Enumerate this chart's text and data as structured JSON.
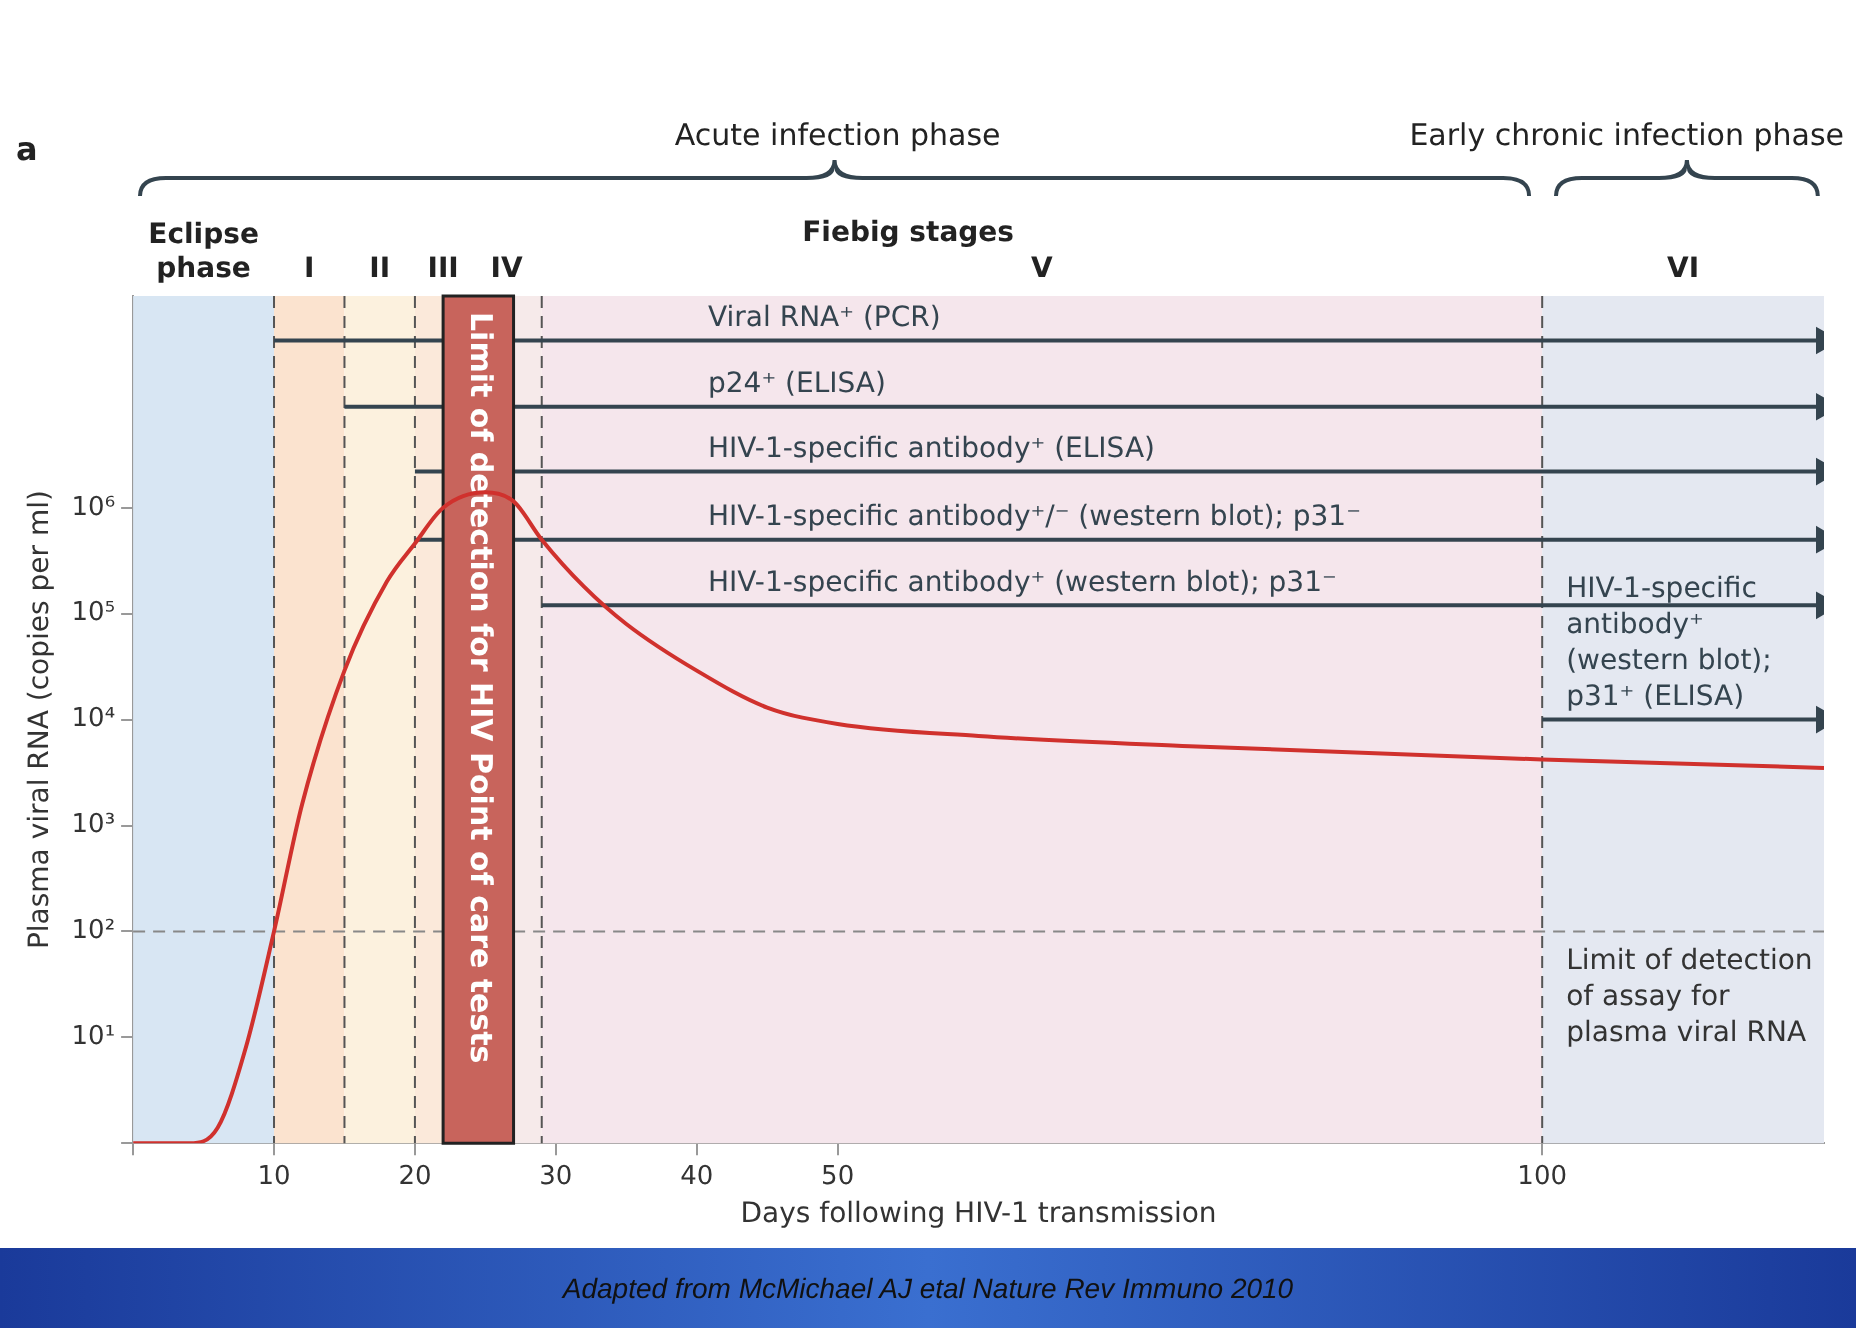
{
  "chart_data": {
    "type": "line",
    "xlabel": "Days following HIV-1 transmission",
    "ylabel": "Plasma viral RNA (copies per ml)",
    "series": [
      {
        "color": "#d0312d",
        "x": [
          0,
          4,
          6,
          8,
          10,
          12,
          15,
          18,
          20,
          22,
          25,
          27,
          29,
          32,
          35,
          40,
          45,
          50,
          60,
          75,
          100,
          120
        ],
        "values": [
          1,
          1,
          1.4,
          8,
          100,
          1600,
          29000,
          200000,
          460000,
          1000000,
          1400000,
          1150000,
          500000,
          180000,
          80000,
          29000,
          13000,
          9100,
          7000,
          5600,
          4200,
          3500
        ]
      },
      {
        "name": "Viral RNA⁺ (PCR)",
        "color": "#34444f",
        "marker": "triangle",
        "x": [
          10,
          120
        ],
        "values": [
          38000000,
          38000000
        ]
      },
      {
        "name": "p24⁺ (ELISA)",
        "color": "#34444f",
        "marker": "triangle",
        "x": [
          15,
          120
        ],
        "values": [
          9000000,
          9000000
        ]
      },
      {
        "name": "HIV-1-specific antibody⁺ (ELISA)",
        "color": "#34444f",
        "marker": "triangle",
        "x": [
          20,
          120
        ],
        "values": [
          2200000,
          2200000
        ]
      },
      {
        "name": "HIV-1-specific antibody⁺/⁻ (western blot); p31⁻",
        "color": "#34444f",
        "marker": "triangle",
        "x": [
          20,
          120
        ],
        "values": [
          500000,
          500000
        ]
      },
      {
        "name": "HIV-1-specific antibody⁺ (western blot); p31⁻",
        "color": "#34444f",
        "marker": "triangle",
        "x": [
          29,
          120
        ],
        "values": [
          120000,
          120000
        ]
      },
      {
        "name": "HIV-1-specific antibody⁺ (western blot); p31⁺ (ELISA)",
        "color": "#34444f",
        "marker": "triangle",
        "x": [
          100,
          120
        ],
        "values": [
          10000,
          10000
        ]
      }
    ],
    "xlim": [
      0,
      120
    ],
    "xticks": [
      {
        "value": 0,
        "label": null
      },
      10,
      20,
      30,
      40,
      50,
      100
    ],
    "ylim": [
      1,
      100000000
    ],
    "yticks": [
      {
        "value": 1,
        "label": null
      },
      {
        "value": 10,
        "label": "10¹"
      },
      {
        "value": 100,
        "label": "10²"
      },
      {
        "value": 1000,
        "label": "10³"
      },
      {
        "value": 10000,
        "label": "10⁴"
      },
      {
        "value": 100000,
        "label": "10⁵"
      },
      {
        "value": 1000000,
        "label": "10⁶"
      }
    ],
    "log": "y",
    "grid": false,
    "legend": false,
    "marker": "none",
    "line_style": "solid",
    "bands": [
      {
        "axis": "x",
        "from": 0,
        "to": 10,
        "label": "Eclipse phase",
        "color": "#d8e6f3"
      },
      {
        "axis": "x",
        "from": 10,
        "to": 15,
        "label": "I",
        "color": "#fbe3cf"
      },
      {
        "axis": "x",
        "from": 15,
        "to": 20,
        "label": "II",
        "color": "#fcf1de"
      },
      {
        "axis": "x",
        "from": 20,
        "to": 24,
        "label": "III",
        "color": "#fbe9da"
      },
      {
        "axis": "x",
        "from": 24,
        "to": 29,
        "label": "IV",
        "color": "#f6eaea"
      },
      {
        "axis": "x",
        "from": 29,
        "to": 100,
        "label": "V",
        "color": "#f5e6ec"
      },
      {
        "axis": "x",
        "from": 100,
        "to": 120,
        "label": "VI",
        "color": "#e4e8f1"
      },
      {
        "axis": "x",
        "from": 22,
        "to": 27,
        "label": "Limit of detection for HIV Point of care tests",
        "color": "#c8645c"
      }
    ],
    "ref_lines": [
      {
        "axis": "x",
        "value": 10,
        "color": "#555555",
        "line_style": "dashed"
      },
      {
        "axis": "x",
        "value": 15,
        "color": "#555555",
        "line_style": "dashed"
      },
      {
        "axis": "x",
        "value": 20,
        "color": "#555555",
        "line_style": "dashed"
      },
      {
        "axis": "x",
        "value": 29,
        "color": "#555555",
        "line_style": "dashed"
      },
      {
        "axis": "x",
        "value": 100,
        "color": "#555555",
        "line_style": "dashed"
      },
      {
        "axis": "y",
        "value": 100,
        "label": "Limit of detection of assay for plasma viral RNA",
        "color": "#888888",
        "line_style": "dashed"
      }
    ],
    "annotations": [
      "a",
      "Acute infection phase",
      "Early chronic infection phase",
      "Fiebig stages",
      "Adapted from McMichael AJ etal Nature Rev Immuno 2010"
    ]
  }
}
